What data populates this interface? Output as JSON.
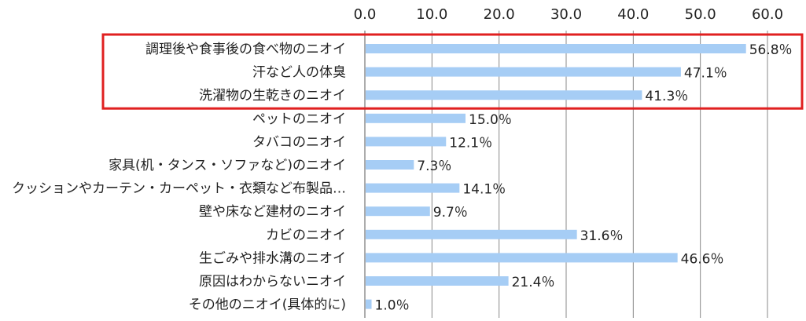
{
  "chart_data": {
    "type": "bar",
    "orientation": "horizontal",
    "title": "",
    "xlabel": "",
    "ylabel": "",
    "xlim": [
      0,
      60
    ],
    "tick_labels": [
      "0.0",
      "10.0",
      "20.0",
      "30.0",
      "40.0",
      "50.0",
      "60.0"
    ],
    "categories": [
      "調理後や食事後の食べ物のニオイ",
      "汗など人の体臭",
      "洗濯物の生乾きのニオイ",
      "ペットのニオイ",
      "タバコのニオイ",
      "家具(机・タンス・ソファなど)のニオイ",
      "クッションやカーテン・カーペット・衣類など布製品…",
      "壁や床など建材のニオイ",
      "カビのニオイ",
      "生ごみや排水溝のニオイ",
      "原因はわからないニオイ",
      "その他のニオイ(具体的に)"
    ],
    "values": [
      56.8,
      47.1,
      41.3,
      15.0,
      12.1,
      7.3,
      14.1,
      9.7,
      31.6,
      46.6,
      21.4,
      1.0
    ],
    "value_labels": [
      "56.8％",
      "47.1％",
      "41.3％",
      "15.0％",
      "12.1％",
      "7.3％",
      "14.1％",
      "9.7％",
      "31.6％",
      "46.6％",
      "21.4％",
      "1.0％"
    ],
    "grid": "vertical",
    "legend": "none",
    "highlight": {
      "indices": [
        0,
        1,
        2
      ],
      "color": "#e02020"
    },
    "colors": {
      "bar": "#a6cdf5",
      "grid": "#888888",
      "text": "#222222"
    }
  }
}
